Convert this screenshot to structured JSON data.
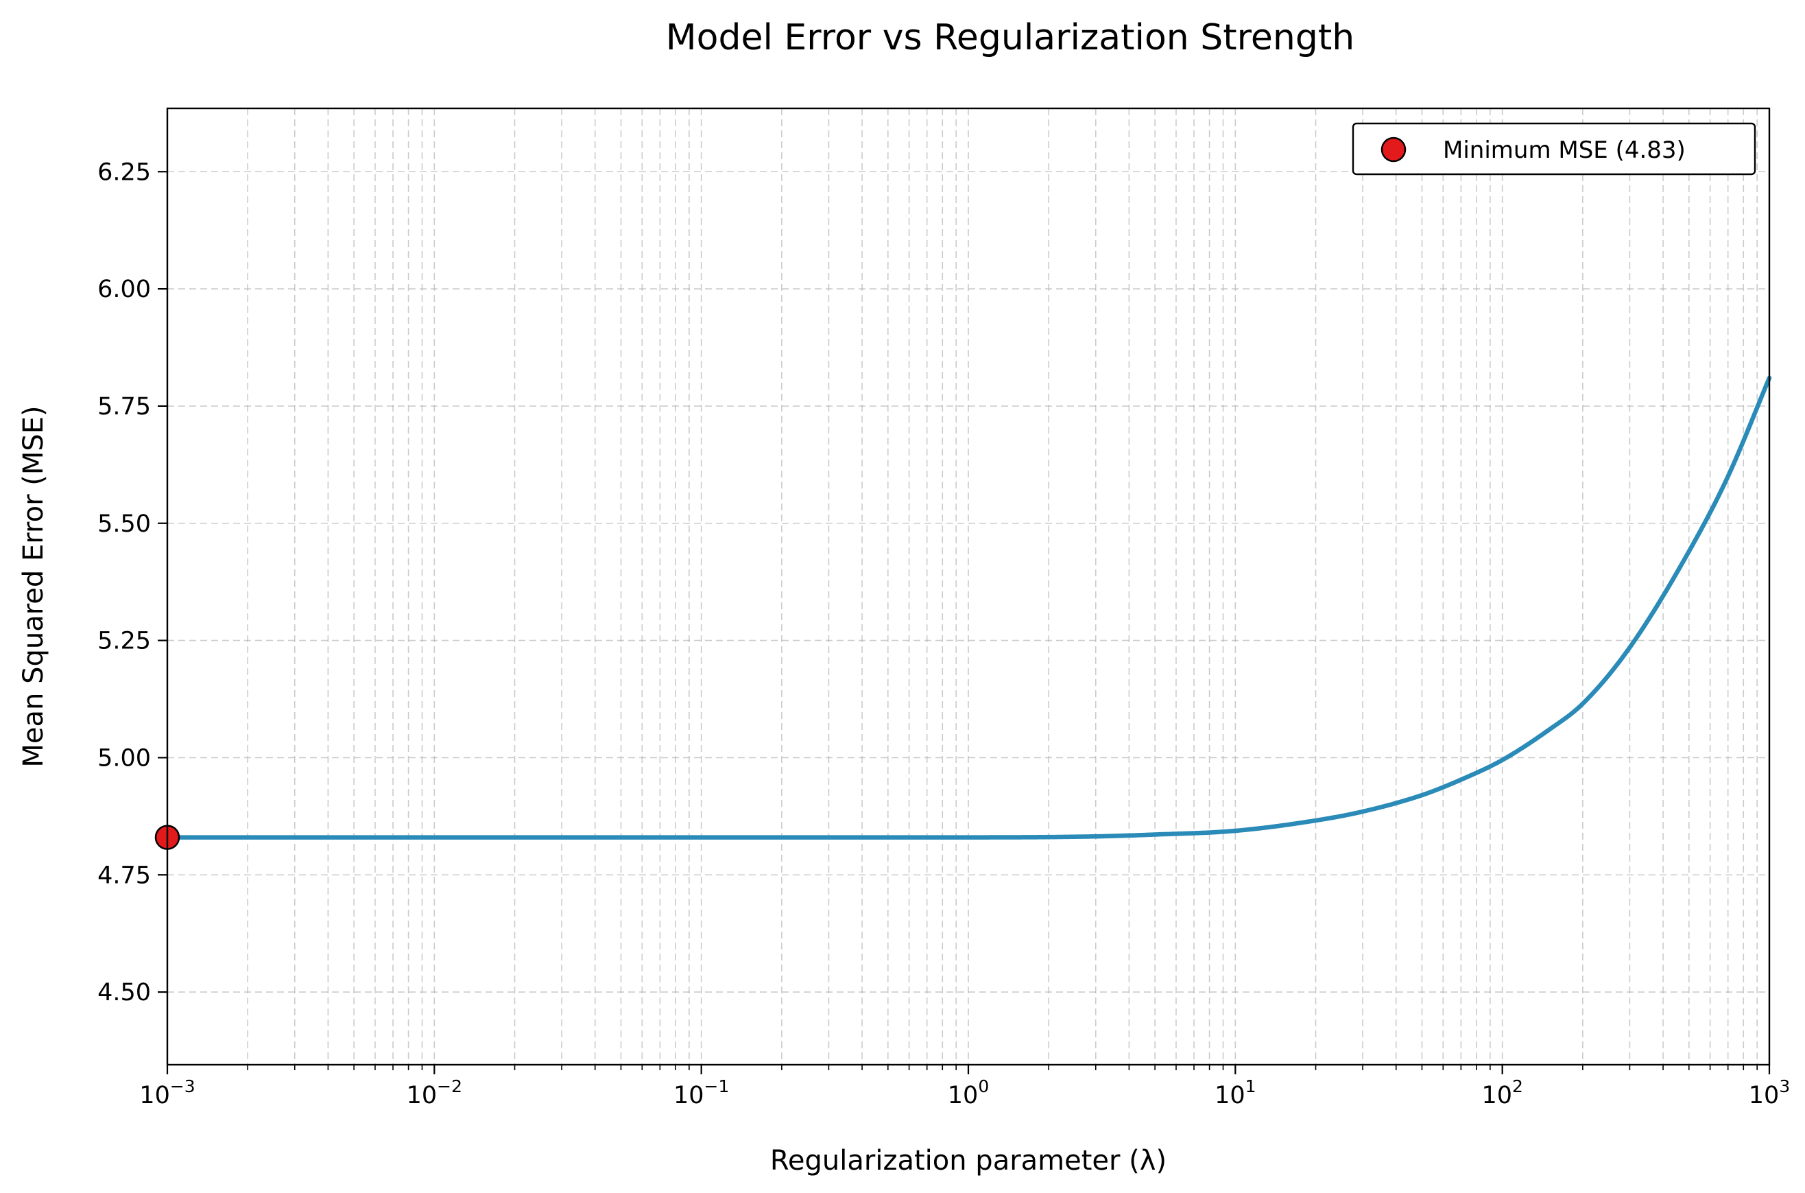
{
  "chart_data": {
    "type": "line",
    "title": "Model Error vs Regularization Strength",
    "xlabel": "Regularization parameter (λ)",
    "ylabel": "Mean Squared Error (MSE)",
    "xscale": "log",
    "xlim": [
      0.001,
      1000
    ],
    "ylim": [
      4.345,
      6.385
    ],
    "grid": true,
    "legend_position": "top-right",
    "x_ticks": [
      {
        "value": 0.001,
        "base": "10",
        "exp": "−3"
      },
      {
        "value": 0.01,
        "base": "10",
        "exp": "−2"
      },
      {
        "value": 0.1,
        "base": "10",
        "exp": "−1"
      },
      {
        "value": 1,
        "base": "10",
        "exp": "0"
      },
      {
        "value": 10,
        "base": "10",
        "exp": "1"
      },
      {
        "value": 100,
        "base": "10",
        "exp": "2"
      },
      {
        "value": 1000,
        "base": "10",
        "exp": "3"
      }
    ],
    "y_ticks": [
      {
        "value": 4.5,
        "label": "4.50"
      },
      {
        "value": 4.75,
        "label": "4.75"
      },
      {
        "value": 5.0,
        "label": "5.00"
      },
      {
        "value": 5.25,
        "label": "5.25"
      },
      {
        "value": 5.5,
        "label": "5.50"
      },
      {
        "value": 5.75,
        "label": "5.75"
      },
      {
        "value": 6.0,
        "label": "6.00"
      },
      {
        "value": 6.25,
        "label": "6.25"
      }
    ],
    "series": [
      {
        "color": "#2a8ab8",
        "x": [
          0.001,
          0.01,
          0.1,
          1,
          3,
          5,
          10,
          20,
          30,
          50,
          70,
          100,
          150,
          200,
          300,
          500,
          700,
          1000
        ],
        "y": [
          4.83,
          4.83,
          4.83,
          4.83,
          4.832,
          4.836,
          4.844,
          4.866,
          4.885,
          4.92,
          4.953,
          4.995,
          5.06,
          5.115,
          5.235,
          5.44,
          5.6,
          5.81
        ]
      }
    ],
    "highlight_point": {
      "label": "Minimum MSE (4.83)",
      "x": 0.001,
      "y": 4.83,
      "color": "#e31a1c",
      "edge_color": "#000000"
    }
  }
}
